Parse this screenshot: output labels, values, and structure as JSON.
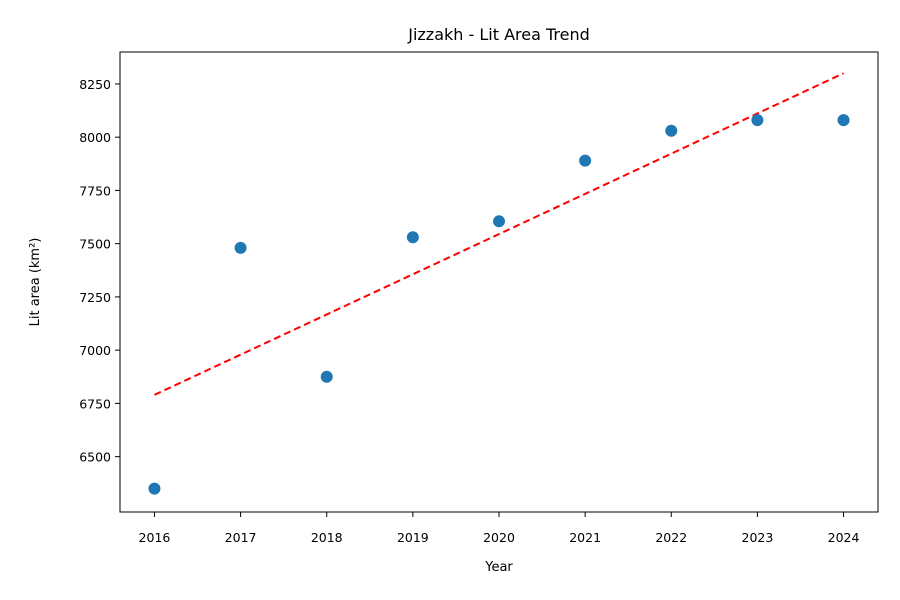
{
  "chart_data": {
    "type": "scatter",
    "title": "Jizzakh - Lit Area Trend",
    "xlabel": "Year",
    "ylabel": "Lit area (km²)",
    "x": [
      2016,
      2017,
      2018,
      2019,
      2020,
      2021,
      2022,
      2023,
      2024
    ],
    "series": [
      {
        "values": [
          6350,
          7480,
          6875,
          7530,
          7605,
          7890,
          8030,
          8080,
          8080
        ],
        "color": "#1f77b4"
      }
    ],
    "trendline": {
      "style": "dashed",
      "color": "#ff0000",
      "x": [
        2016,
        2024
      ],
      "y": [
        6790,
        8300
      ]
    },
    "xticks": [
      2016,
      2017,
      2018,
      2019,
      2020,
      2021,
      2022,
      2023,
      2024
    ],
    "yticks": [
      6500,
      6750,
      7000,
      7250,
      7500,
      7750,
      8000,
      8250
    ],
    "xlim": [
      2015.6,
      2024.4
    ],
    "ylim": [
      6240,
      8400
    ],
    "grid": false,
    "legend": "none"
  }
}
